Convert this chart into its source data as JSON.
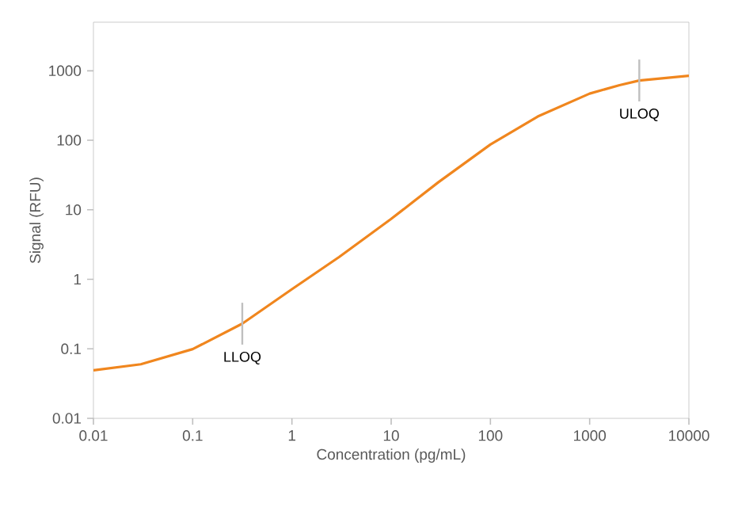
{
  "chart_data": {
    "type": "line",
    "xlabel": "Concentration (pg/mL)",
    "ylabel": "Signal (RFU)",
    "log": "xy",
    "x": [
      0.01,
      0.03,
      0.1,
      0.316,
      1,
      3,
      10,
      30,
      100,
      300,
      1000,
      2000,
      3162,
      10000
    ],
    "series": [
      {
        "color": "#f0861e",
        "values": [
          0.049,
          0.06,
          0.099,
          0.23,
          0.72,
          2.1,
          7.4,
          25,
          87,
          220,
          470,
          620,
          725,
          850
        ]
      }
    ],
    "xlim": [
      0.01,
      10000
    ],
    "ylim": [
      0.01,
      5000
    ],
    "xticks": [
      0.01,
      0.1,
      1,
      10,
      100,
      1000,
      10000
    ],
    "yticks": [
      0.01,
      0.1,
      1,
      10,
      100,
      1000
    ],
    "annotations": [
      {
        "text": "LLOQ",
        "x": 0.316,
        "y": 0.23
      },
      {
        "text": "ULOQ",
        "x": 3162,
        "y": 725
      }
    ],
    "marker": "none",
    "line_style": "solid"
  }
}
